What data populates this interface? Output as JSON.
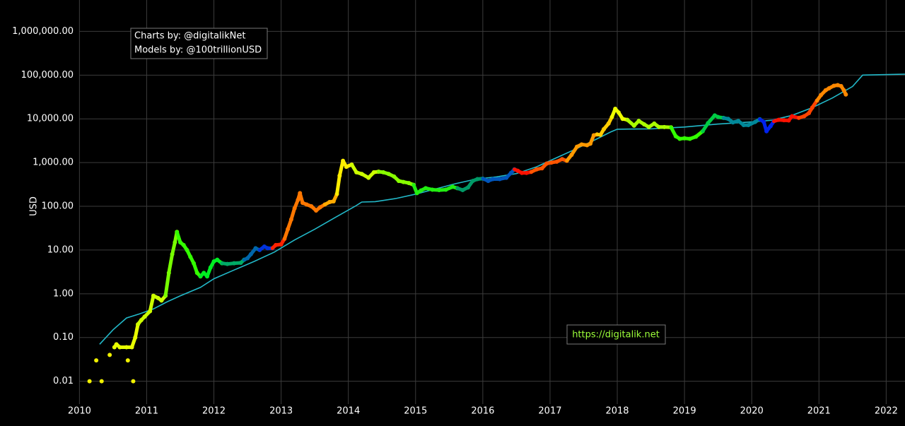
{
  "chart_data": {
    "type": "scatter",
    "y_label": "USD",
    "ylog": true,
    "grid": true,
    "annotations": [
      "Charts by: @digitalikNet",
      "Models by: @100trillionUSD"
    ],
    "link": "https://digitalik.net",
    "link_color": "#9cff3a",
    "xlim": [
      2009.87,
      2022.28
    ],
    "xticks": [
      2010,
      2011,
      2012,
      2013,
      2014,
      2015,
      2016,
      2017,
      2018,
      2019,
      2020,
      2021,
      2022
    ],
    "ylim": [
      0.003,
      3600000
    ],
    "yticks": [
      {
        "value": 0.01,
        "label": "0.01"
      },
      {
        "value": 0.1,
        "label": "0.10"
      },
      {
        "value": 1,
        "label": "1.00"
      },
      {
        "value": 10,
        "label": "10.00"
      },
      {
        "value": 100,
        "label": "100.00"
      },
      {
        "value": 1000,
        "label": "1,000.00"
      },
      {
        "value": 10000,
        "label": "10,000.00"
      },
      {
        "value": 100000,
        "label": "100,000.00"
      },
      {
        "value": 1000000,
        "label": "1,000,000.00"
      }
    ],
    "model": {
      "color": "#22b8c8",
      "x": [
        2010.3,
        2010.5,
        2010.7,
        2010.9,
        2011.1,
        2011.3,
        2011.5,
        2011.8,
        2012.0,
        2012.3,
        2012.6,
        2012.9,
        2013.2,
        2013.5,
        2013.8,
        2014.1,
        2014.2,
        2014.4,
        2014.7,
        2015.0,
        2015.3,
        2015.6,
        2015.9,
        2016.2,
        2016.5,
        2016.8,
        2017.1,
        2017.4,
        2017.7,
        2017.9,
        2018.0,
        2018.5,
        2019.0,
        2019.5,
        2020.0,
        2020.3,
        2020.6,
        2020.9,
        2021.2,
        2021.5,
        2021.65,
        2022.28
      ],
      "values": [
        0.07,
        0.15,
        0.28,
        0.35,
        0.45,
        0.65,
        0.9,
        1.4,
        2.2,
        3.5,
        5.5,
        9,
        17,
        30,
        55,
        100,
        125,
        128,
        150,
        190,
        250,
        330,
        420,
        470,
        560,
        800,
        1300,
        2100,
        3500,
        5000,
        5800,
        5900,
        6500,
        7600,
        8500,
        9300,
        12000,
        18000,
        30000,
        55000,
        100000,
        105000
      ]
    },
    "series": [
      {
        "color": "#f0f000",
        "mode": "markers",
        "x": [
          2010.15,
          2010.25,
          2010.33,
          2010.45,
          2010.72,
          2010.8
        ],
        "values": [
          0.01,
          0.03,
          0.01,
          0.04,
          0.03,
          0.01
        ]
      },
      {
        "color": "#e8ff00",
        "mode": "lines",
        "x": [
          2010.52,
          2010.55,
          2010.6,
          2010.7,
          2010.78,
          2010.83,
          2010.87
        ],
        "values": [
          0.06,
          0.07,
          0.06,
          0.06,
          0.06,
          0.1,
          0.2
        ]
      },
      {
        "color": "#ccff00",
        "mode": "lines",
        "x": [
          2010.92,
          2010.97,
          2011.05,
          2011.1,
          2011.17,
          2011.22,
          2011.28
        ],
        "values": [
          0.25,
          0.3,
          0.4,
          0.9,
          0.8,
          0.7,
          0.9
        ]
      },
      {
        "color": "#77ff00",
        "mode": "lines",
        "x": [
          2011.33,
          2011.38,
          2011.42,
          2011.45
        ],
        "values": [
          3,
          8,
          15,
          26
        ]
      },
      {
        "color": "#33ff00",
        "mode": "lines",
        "x": [
          2011.5,
          2011.55,
          2011.6,
          2011.65,
          2011.7,
          2011.75,
          2011.8
        ],
        "values": [
          15,
          13,
          10,
          7,
          5,
          3,
          2.5
        ]
      },
      {
        "color": "#00ee22",
        "mode": "lines",
        "x": [
          2011.85,
          2011.9,
          2011.95,
          2012.0,
          2012.05,
          2012.12
        ],
        "values": [
          3,
          2.5,
          4,
          5.5,
          6,
          5
        ]
      },
      {
        "color": "#00aa66",
        "mode": "lines",
        "x": [
          2012.2,
          2012.3,
          2012.4,
          2012.45
        ],
        "values": [
          4.8,
          5,
          5.1,
          6
        ]
      },
      {
        "color": "#0066aa",
        "mode": "lines",
        "x": [
          2012.5,
          2012.55,
          2012.62,
          2012.68
        ],
        "values": [
          6.5,
          8,
          11,
          10
        ]
      },
      {
        "color": "#0033dd",
        "mode": "lines",
        "x": [
          2012.75,
          2012.8,
          2012.87
        ],
        "values": [
          12,
          11,
          11
        ]
      },
      {
        "color": "#ff2200",
        "mode": "lines",
        "x": [
          2012.92,
          2013.0,
          2013.05
        ],
        "values": [
          13,
          13.5,
          18
        ]
      },
      {
        "color": "#ff7700",
        "mode": "lines",
        "x": [
          2013.1,
          2013.15,
          2013.2,
          2013.25,
          2013.28,
          2013.32,
          2013.38,
          2013.45,
          2013.52,
          2013.58,
          2013.65
        ],
        "values": [
          30,
          50,
          90,
          140,
          200,
          120,
          110,
          100,
          80,
          95,
          110
        ]
      },
      {
        "color": "#ffaa00",
        "mode": "lines",
        "x": [
          2013.72,
          2013.78,
          2013.83
        ],
        "values": [
          125,
          130,
          190
        ]
      },
      {
        "color": "#ffee00",
        "mode": "lines",
        "x": [
          2013.87,
          2013.92,
          2013.97,
          2014.05
        ],
        "values": [
          500,
          1100,
          800,
          900
        ]
      },
      {
        "color": "#ccff00",
        "mode": "lines",
        "x": [
          2014.12,
          2014.2,
          2014.3,
          2014.38,
          2014.45
        ],
        "values": [
          600,
          550,
          450,
          600,
          620
        ]
      },
      {
        "color": "#88ff00",
        "mode": "lines",
        "x": [
          2014.52,
          2014.6,
          2014.68,
          2014.75,
          2014.82,
          2014.9,
          2014.97
        ],
        "values": [
          600,
          550,
          480,
          380,
          360,
          340,
          310
        ]
      },
      {
        "color": "#22ee11",
        "mode": "lines",
        "x": [
          2015.02,
          2015.08,
          2015.15,
          2015.25,
          2015.35,
          2015.45,
          2015.55,
          2015.62
        ],
        "values": [
          200,
          230,
          260,
          240,
          235,
          240,
          280,
          260
        ]
      },
      {
        "color": "#009966",
        "mode": "lines",
        "x": [
          2015.7,
          2015.78,
          2015.85,
          2015.92,
          2016.0
        ],
        "values": [
          235,
          270,
          380,
          420,
          430
        ]
      },
      {
        "color": "#0055bb",
        "mode": "lines",
        "x": [
          2016.08,
          2016.15,
          2016.25,
          2016.35,
          2016.42,
          2016.47
        ],
        "values": [
          380,
          420,
          420,
          450,
          580,
          700
        ]
      },
      {
        "color": "#ff1100",
        "mode": "lines",
        "x": [
          2016.52,
          2016.58,
          2016.65,
          2016.72
        ],
        "values": [
          650,
          580,
          580,
          610
        ]
      },
      {
        "color": "#ff5500",
        "mode": "lines",
        "x": [
          2016.8,
          2016.88,
          2016.95,
          2017.02,
          2017.1,
          2017.18,
          2017.25
        ],
        "values": [
          700,
          740,
          950,
          1000,
          1050,
          1200,
          1100
        ]
      },
      {
        "color": "#ff9900",
        "mode": "lines",
        "x": [
          2017.32,
          2017.4,
          2017.47,
          2017.55,
          2017.6,
          2017.65,
          2017.7
        ],
        "values": [
          1500,
          2300,
          2600,
          2500,
          2700,
          4200,
          4400
        ]
      },
      {
        "color": "#ffcc00",
        "mode": "lines",
        "x": [
          2017.75,
          2017.8,
          2017.87,
          2017.92
        ],
        "values": [
          4300,
          5800,
          7800,
          11000
        ]
      },
      {
        "color": "#eeff00",
        "mode": "lines",
        "x": [
          2017.97,
          2018.02,
          2018.08,
          2018.15
        ],
        "values": [
          17000,
          14000,
          10000,
          9500
        ]
      },
      {
        "color": "#aaff00",
        "mode": "lines",
        "x": [
          2018.25,
          2018.32,
          2018.4,
          2018.47,
          2018.55,
          2018.62,
          2018.7,
          2018.8
        ],
        "values": [
          7000,
          9000,
          7500,
          6500,
          7800,
          6500,
          6500,
          6400
        ]
      },
      {
        "color": "#33ff00",
        "mode": "lines",
        "x": [
          2018.87,
          2018.93,
          2019.0,
          2019.08,
          2019.17,
          2019.27
        ],
        "values": [
          4000,
          3500,
          3600,
          3500,
          3900,
          5200
        ]
      },
      {
        "color": "#00cc44",
        "mode": "lines",
        "x": [
          2019.35,
          2019.45,
          2019.5,
          2019.58
        ],
        "values": [
          8000,
          12000,
          11000,
          10500
        ]
      },
      {
        "color": "#008899",
        "mode": "lines",
        "x": [
          2019.65,
          2019.72,
          2019.8,
          2019.88,
          2019.95,
          2020.05,
          2020.12
        ],
        "values": [
          10000,
          8300,
          9000,
          7200,
          7200,
          8500,
          9800
        ]
      },
      {
        "color": "#0022ee",
        "mode": "lines",
        "x": [
          2020.18,
          2020.22,
          2020.28,
          2020.33
        ],
        "values": [
          8500,
          5200,
          6800,
          8800
        ]
      },
      {
        "color": "#ff1100",
        "mode": "lines",
        "x": [
          2020.4,
          2020.48,
          2020.55,
          2020.6,
          2020.7
        ],
        "values": [
          9500,
          9300,
          9200,
          11500,
          10500
        ]
      },
      {
        "color": "#ff4400",
        "mode": "lines",
        "x": [
          2020.78,
          2020.85,
          2020.9,
          2020.97
        ],
        "values": [
          11500,
          13500,
          18000,
          26000
        ]
      },
      {
        "color": "#ff8800",
        "mode": "lines",
        "x": [
          2021.03,
          2021.1,
          2021.15,
          2021.22,
          2021.28,
          2021.33,
          2021.37,
          2021.4
        ],
        "values": [
          35000,
          45000,
          50000,
          57000,
          59000,
          56000,
          45000,
          36000
        ]
      }
    ]
  }
}
